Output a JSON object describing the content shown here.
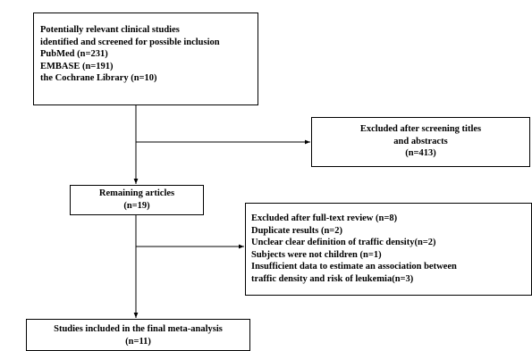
{
  "flowchart": {
    "search_box": {
      "lines": [
        "Potentially relevant clinical studies",
        "identified and screened for possible inclusion",
        "PubMed (n=231)",
        "EMBASE (n=191)",
        "the Cochrane Library (n=10)"
      ]
    },
    "excluded_screening_box": {
      "lines": [
        "Excluded after screening titles",
        "and abstracts",
        "(n=413)"
      ]
    },
    "remaining_box": {
      "lines": [
        "Remaining articles",
        "(n=19)"
      ]
    },
    "excluded_fulltext_box": {
      "lines": [
        "Excluded after full-text review (n=8)",
        "Duplicate results (n=2)",
        "Unclear clear definition of traffic density(n=2)",
        "Subjects were not children (n=1)",
        "Insufficient data to estimate an association between",
        "traffic density and risk of leukemia(n=3)"
      ]
    },
    "included_box": {
      "lines": [
        "Studies included in the final meta-analysis",
        "(n=11)"
      ]
    }
  }
}
